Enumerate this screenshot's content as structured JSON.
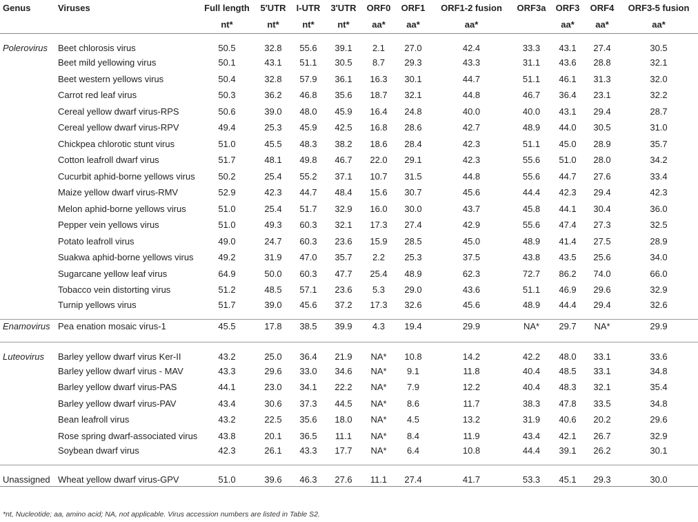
{
  "headers": {
    "genus": "Genus",
    "viruses": "Viruses",
    "cols": [
      {
        "top": "Full length",
        "unit": "nt*"
      },
      {
        "top": "5′UTR",
        "unit": "nt*"
      },
      {
        "top": "I-UTR",
        "unit": "nt*"
      },
      {
        "top": "3′UTR",
        "unit": "nt*"
      },
      {
        "top": "ORF0",
        "unit": "aa*"
      },
      {
        "top": "ORF1",
        "unit": "aa*"
      },
      {
        "top": "ORF1-2 fusion",
        "unit": "aa*"
      },
      {
        "top": "ORF3a",
        "unit": ""
      },
      {
        "top": "ORF3",
        "unit": "aa*"
      },
      {
        "top": "ORF4",
        "unit": "aa*"
      },
      {
        "top": "ORF3-5 fusion",
        "unit": "aa*"
      }
    ]
  },
  "groups": [
    {
      "genus": "Polerovirus",
      "italic": true,
      "rows": [
        {
          "virus": "Beet chlorosis virus",
          "values": [
            "50.5",
            "32.8",
            "55.6",
            "39.1",
            "2.1",
            "27.0",
            "42.4",
            "33.3",
            "43.1",
            "27.4",
            "30.5"
          ]
        },
        {
          "virus": "Beet mild yellowing virus",
          "values": [
            "50.1",
            "43.1",
            "51.1",
            "30.5",
            "8.7",
            "29.3",
            "43.3",
            "31.1",
            "43.6",
            "28.8",
            "32.1"
          ]
        },
        {
          "virus": "Beet western yellows virus",
          "values": [
            "50.4",
            "32.8",
            "57.9",
            "36.1",
            "16.3",
            "30.1",
            "44.7",
            "51.1",
            "46.1",
            "31.3",
            "32.0"
          ]
        },
        {
          "virus": "Carrot red leaf virus",
          "values": [
            "50.3",
            "36.2",
            "46.8",
            "35.6",
            "18.7",
            "32.1",
            "44.8",
            "46.7",
            "36.4",
            "23.1",
            "32.2"
          ]
        },
        {
          "virus": "Cereal yellow dwarf virus-RPS",
          "values": [
            "50.6",
            "39.0",
            "48.0",
            "45.9",
            "16.4",
            "24.8",
            "40.0",
            "40.0",
            "43.1",
            "29.4",
            "28.7"
          ]
        },
        {
          "virus": "Cereal yellow dwarf virus-RPV",
          "values": [
            "49.4",
            "25.3",
            "45.9",
            "42.5",
            "16.8",
            "28.6",
            "42.7",
            "48.9",
            "44.0",
            "30.5",
            "31.0"
          ]
        },
        {
          "virus": "Chickpea chlorotic stunt virus",
          "values": [
            "51.0",
            "45.5",
            "48.3",
            "38.2",
            "18.6",
            "28.4",
            "42.3",
            "51.1",
            "45.0",
            "28.9",
            "35.7"
          ]
        },
        {
          "virus": "Cotton leafroll dwarf virus",
          "values": [
            "51.7",
            "48.1",
            "49.8",
            "46.7",
            "22.0",
            "29.1",
            "42.3",
            "55.6",
            "51.0",
            "28.0",
            "34.2"
          ]
        },
        {
          "virus": "Cucurbit aphid-borne yellows virus",
          "values": [
            "50.2",
            "25.4",
            "55.2",
            "37.1",
            "10.7",
            "31.5",
            "44.8",
            "55.6",
            "44.7",
            "27.6",
            "33.4"
          ]
        },
        {
          "virus": "Maize yellow dwarf virus-RMV",
          "values": [
            "52.9",
            "42.3",
            "44.7",
            "48.4",
            "15.6",
            "30.7",
            "45.6",
            "44.4",
            "42.3",
            "29.4",
            "42.3"
          ]
        },
        {
          "virus": "Melon aphid-borne yellows virus",
          "values": [
            "51.0",
            "25.4",
            "51.7",
            "32.9",
            "16.0",
            "30.0",
            "43.7",
            "45.8",
            "44.1",
            "30.4",
            "36.0"
          ]
        },
        {
          "virus": "Pepper vein yellows virus",
          "values": [
            "51.0",
            "49.3",
            "60.3",
            "32.1",
            "17.3",
            "27.4",
            "42.9",
            "55.6",
            "47.4",
            "27.3",
            "32.5"
          ]
        },
        {
          "virus": "Potato leafroll virus",
          "values": [
            "49.0",
            "24.7",
            "60.3",
            "23.6",
            "15.9",
            "28.5",
            "45.0",
            "48.9",
            "41.4",
            "27.5",
            "28.9"
          ]
        },
        {
          "virus": "Suakwa aphid-borne yellows virus",
          "values": [
            "49.2",
            "31.9",
            "47.0",
            "35.7",
            "2.2",
            "25.3",
            "37.5",
            "43.8",
            "43.5",
            "25.6",
            "34.0"
          ]
        },
        {
          "virus": "Sugarcane yellow leaf virus",
          "values": [
            "64.9",
            "50.0",
            "60.3",
            "47.7",
            "25.4",
            "48.9",
            "62.3",
            "72.7",
            "86.2",
            "74.0",
            "66.0"
          ]
        },
        {
          "virus": "Tobacco vein distorting virus",
          "values": [
            "51.2",
            "48.5",
            "57.1",
            "23.6",
            "5.3",
            "29.0",
            "43.6",
            "51.1",
            "46.9",
            "29.6",
            "32.9"
          ]
        },
        {
          "virus": "Turnip yellows virus",
          "values": [
            "51.7",
            "39.0",
            "45.6",
            "37.2",
            "17.3",
            "32.6",
            "45.6",
            "48.9",
            "44.4",
            "29.4",
            "32.6"
          ]
        }
      ]
    },
    {
      "genus": "Enamovirus",
      "italic": true,
      "rows": [
        {
          "virus": "Pea enation mosaic virus-1",
          "values": [
            "45.5",
            "17.8",
            "38.5",
            "39.9",
            "4.3",
            "19.4",
            "29.9",
            "NA*",
            "29.7",
            "NA*",
            "29.9"
          ]
        }
      ]
    },
    {
      "genus": "Luteovirus",
      "italic": true,
      "rows": [
        {
          "virus": "Barley yellow dwarf virus Ker-II",
          "values": [
            "43.2",
            "25.0",
            "36.4",
            "21.9",
            "NA*",
            "10.8",
            "14.2",
            "42.2",
            "48.0",
            "33.1",
            "33.6"
          ]
        },
        {
          "virus": "Barley yellow dwarf virus - MAV",
          "values": [
            "43.3",
            "29.6",
            "33.0",
            "34.6",
            "NA*",
            "9.1",
            "11.8",
            "40.4",
            "48.5",
            "33.1",
            "34.8"
          ]
        },
        {
          "virus": "Barley yellow dwarf virus-PAS",
          "values": [
            "44.1",
            "23.0",
            "34.1",
            "22.2",
            "NA*",
            "7.9",
            "12.2",
            "40.4",
            "48.3",
            "32.1",
            "35.4"
          ]
        },
        {
          "virus": "Barley yellow dwarf virus-PAV",
          "values": [
            "43.4",
            "30.6",
            "37.3",
            "44.5",
            "NA*",
            "8.6",
            "11.7",
            "38.3",
            "47.8",
            "33.5",
            "34.8"
          ]
        },
        {
          "virus": "Bean leafroll virus",
          "values": [
            "43.2",
            "22.5",
            "35.6",
            "18.0",
            "NA*",
            "4.5",
            "13.2",
            "31.9",
            "40.6",
            "20.2",
            "29.6"
          ]
        },
        {
          "virus": "Rose spring dwarf-associated virus",
          "values": [
            "43.8",
            "20.1",
            "36.5",
            "11.1",
            "NA*",
            "8.4",
            "11.9",
            "43.4",
            "42.1",
            "26.7",
            "32.9"
          ]
        },
        {
          "virus": "Soybean dwarf virus",
          "values": [
            "42.3",
            "26.1",
            "43.3",
            "17.7",
            "NA*",
            "6.4",
            "10.8",
            "44.4",
            "39.1",
            "26.2",
            "30.1"
          ]
        }
      ]
    },
    {
      "genus": "Unassigned",
      "italic": false,
      "rows": [
        {
          "virus": "Wheat yellow dwarf virus-GPV",
          "values": [
            "51.0",
            "39.6",
            "46.3",
            "27.6",
            "11.1",
            "27.4",
            "41.7",
            "53.3",
            "45.1",
            "29.3",
            "30.0"
          ]
        }
      ]
    }
  ],
  "footnote": "*nt, Nucleotide; aa, amino acid; NA, not applicable. Virus accession numbers are listed in Table S2."
}
